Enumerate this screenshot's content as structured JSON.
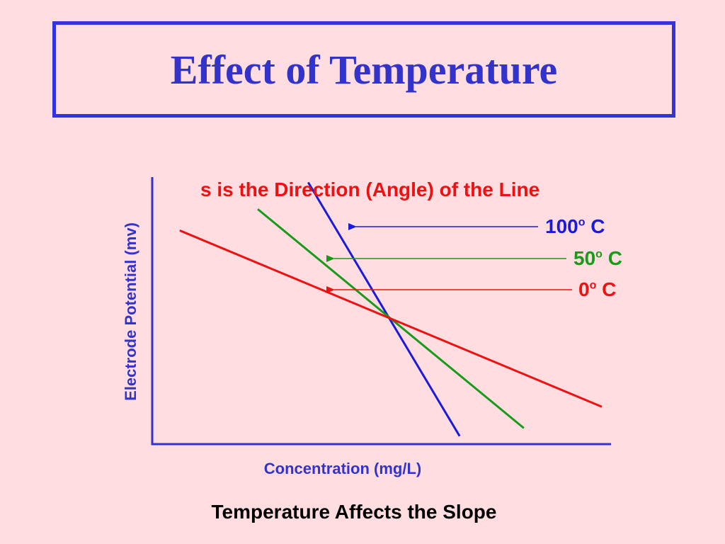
{
  "slide": {
    "title": "Effect of Temperature",
    "caption": "Temperature Affects the Slope"
  },
  "colors": {
    "background": "#FFDDE0",
    "title_border": "#3333DD",
    "title_text": "#3333CC",
    "axis": "#3333CC",
    "annotation": "#EE1111"
  },
  "chart_data": {
    "type": "line",
    "xlabel": "Concentration (mg/L)",
    "ylabel": "Electrode Potential (mv)",
    "annotation": "s  is the Direction (Angle) of the Line",
    "grid": false,
    "series": [
      {
        "name": "100",
        "unit": "C",
        "degree_symbol": "o",
        "color": "#1A1ADD",
        "x": [
          0.34,
          0.67
        ],
        "y": [
          0.98,
          0.03
        ]
      },
      {
        "name": "50",
        "unit": "C",
        "degree_symbol": "o",
        "color": "#1A9A1A",
        "x": [
          0.23,
          0.81
        ],
        "y": [
          0.88,
          0.06
        ]
      },
      {
        "name": "0",
        "unit": "C",
        "degree_symbol": "o",
        "color": "#EE1111",
        "x": [
          0.06,
          0.98
        ],
        "y": [
          0.8,
          0.14
        ]
      }
    ]
  }
}
